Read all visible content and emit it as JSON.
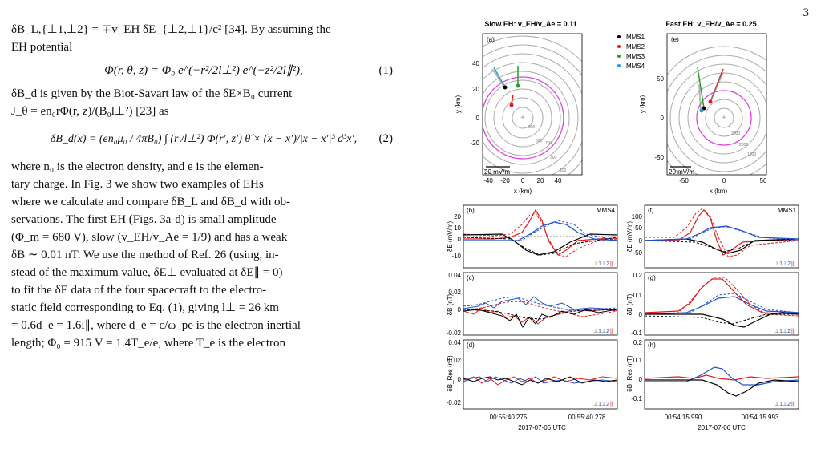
{
  "page_number": "3",
  "text": {
    "line1": "δB_L,{⊥1,⊥2} = ∓v_EH δE_{⊥2,⊥1}/c² [34]. By assuming the",
    "line2": "EH potential",
    "eq1": "Φ(r, θ, z) = Φ₀ e^(−r²/2l⊥²) e^(−z²/2l∥²),",
    "eq1_no": "(1)",
    "line3": "δB_d is given by the Biot-Savart law of the δE×B₀ current",
    "line4": "J_θ = en₀rΦ(r, z)/(B₀l⊥²) [23] as",
    "eq2": "δB_d(x) = (en₀μ₀ / 4πB₀) ∫ (r′/l⊥²) Φ(r′, z′) θ̂ × (x − x′)/|x − x′|³ d³x′,",
    "eq2_no": "(2)",
    "para": [
      "where n₀ is the electron density, and e is the elemen-",
      "tary charge. In Fig. 3 we show two examples of EHs",
      "where we calculate and compare δB_L and δB_d with ob-",
      "servations. The first EH (Figs. 3a-d) is small amplitude",
      "(Φ_m = 680 V), slow (v_EH/v_Ae = 1/9) and has a weak",
      "δB ∼ 0.01 nT. We use the method of Ref. 26 (using, in-",
      "stead of the maximum value, δE⊥ evaluated at δE∥ = 0)",
      "to fit the δE data of the four spacecraft to the electro-",
      "static field corresponding to Eq. (1), giving l⊥ = 26 km",
      "= 0.6d_e = 1.6l∥, where d_e = c/ω_pe is the electron inertial",
      "length; Φ₀ = 915 V = 1.4T_e/e, where T_e is the electron"
    ]
  },
  "figure": {
    "title_left": "Slow EH: v_EH/v_Ae = 0.11",
    "title_right": "Fast EH: v_EH/v_Ae = 0.25",
    "legend": [
      {
        "label": "MMS1",
        "color": "#000000"
      },
      {
        "label": "MMS2",
        "color": "#e41a1c"
      },
      {
        "label": "MMS3",
        "color": "#2a9d2a"
      },
      {
        "label": "MMS4",
        "color": "#1f9fdf"
      }
    ],
    "panel_labels": [
      "(a)",
      "(e)",
      "(b)",
      "(f)",
      "(c)",
      "(g)",
      "(d)",
      "(h)"
    ],
    "scale_bar": "20 mV/m",
    "xlabel_km": "x (km)",
    "ylabel_km": "y (km)",
    "a_xticks": [
      "-40",
      "-20",
      "0",
      "20",
      "40"
    ],
    "a_yticks": [
      "40",
      "20",
      "0",
      "-20"
    ],
    "e_xticks": [
      "-50",
      "0",
      "50"
    ],
    "e_yticks": [
      "50",
      "0",
      "-50"
    ],
    "contours_a": [
      "300",
      "500",
      "700",
      "300",
      "100"
    ],
    "contours_e": [
      "3000",
      "2000",
      "1000"
    ],
    "ylabel_E": "δE (mV/m)",
    "ylabel_B": "δB (nT)",
    "ylabel_Bres": "δB_Res (nT)",
    "sc_left": "MMS4",
    "sc_right": "MMS1",
    "comp": [
      "⊥1",
      "⊥2",
      "||"
    ],
    "b_yticks": [
      "20",
      "10",
      "0",
      "-10"
    ],
    "f_yticks": [
      "100",
      "50",
      "0",
      "-50"
    ],
    "c_yticks": [
      "0.04",
      "0.02",
      "0",
      "-0.02"
    ],
    "g_yticks": [
      "0.2",
      "0.1",
      "0",
      "-0.1"
    ],
    "d_yticks": [
      "0.04",
      "0.02",
      "0",
      "-0.02"
    ],
    "h_yticks": [
      "0.2",
      "0.1",
      "0",
      "-0.1"
    ],
    "left_time_ticks": [
      "00:55:40.275",
      "00:55:40.278"
    ],
    "right_time_ticks": [
      "00:54:15.990",
      "00:54:15.993"
    ],
    "date_label": "2017-07-06 UTC"
  }
}
